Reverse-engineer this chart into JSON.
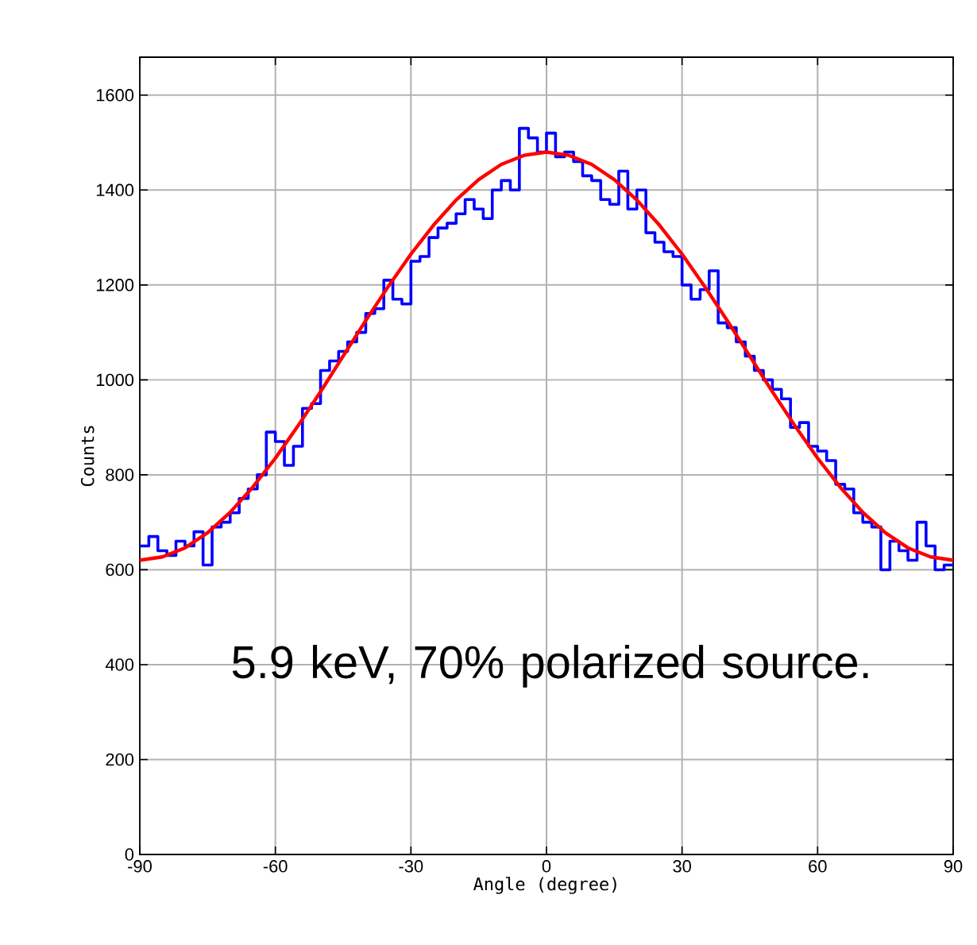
{
  "chart_data": {
    "type": "histogram",
    "xlabel": "Angle (degree)",
    "ylabel": "Counts",
    "annotations": [
      "5.9 keV, 70% polarized source."
    ],
    "bins": [
      -90,
      -88,
      -86,
      -84,
      -82,
      -80,
      -78,
      -76,
      -74,
      -72,
      -70,
      -68,
      -66,
      -64,
      -62,
      -60,
      -58,
      -56,
      -54,
      -52,
      -50,
      -48,
      -46,
      -44,
      -42,
      -40,
      -38,
      -36,
      -34,
      -32,
      -30,
      -28,
      -26,
      -24,
      -22,
      -20,
      -18,
      -16,
      -14,
      -12,
      -10,
      -8,
      -6,
      -4,
      -2,
      0,
      2,
      4,
      6,
      8,
      10,
      12,
      14,
      16,
      18,
      20,
      22,
      24,
      26,
      28,
      30,
      32,
      34,
      36,
      38,
      40,
      42,
      44,
      46,
      48,
      50,
      52,
      54,
      56,
      58,
      60,
      62,
      64,
      66,
      68,
      70,
      72,
      74,
      76,
      78,
      80,
      82,
      84,
      86,
      88,
      90
    ],
    "series": [
      {
        "color": "#0000ff",
        "values": [
          650,
          670,
          640,
          630,
          660,
          650,
          680,
          610,
          690,
          700,
          720,
          750,
          770,
          800,
          890,
          870,
          820,
          860,
          940,
          950,
          1020,
          1040,
          1060,
          1080,
          1100,
          1140,
          1150,
          1210,
          1170,
          1160,
          1250,
          1260,
          1300,
          1320,
          1330,
          1350,
          1380,
          1360,
          1340,
          1400,
          1420,
          1400,
          1530,
          1510,
          1480,
          1520,
          1470,
          1480,
          1460,
          1430,
          1420,
          1380,
          1370,
          1440,
          1360,
          1400,
          1310,
          1290,
          1270,
          1260,
          1200,
          1170,
          1190,
          1230,
          1120,
          1110,
          1080,
          1050,
          1020,
          1000,
          980,
          960,
          900,
          910,
          860,
          850,
          830,
          780,
          770,
          720,
          700,
          690,
          600,
          660,
          640,
          620,
          700,
          650,
          600,
          610
        ]
      },
      {
        "type": "line",
        "color": "#ff0000",
        "x": [
          -90,
          -85,
          -80,
          -75,
          -70,
          -65,
          -60,
          -55,
          -50,
          -45,
          -40,
          -35,
          -30,
          -25,
          -20,
          -15,
          -10,
          -5,
          0,
          5,
          10,
          15,
          20,
          25,
          30,
          35,
          40,
          45,
          50,
          55,
          60,
          65,
          70,
          75,
          80,
          85,
          90
        ],
        "values": [
          620,
          627,
          646,
          678,
          721,
          774,
          835,
          903,
          975,
          1050,
          1125,
          1197,
          1265,
          1326,
          1379,
          1422,
          1454,
          1473,
          1480,
          1473,
          1454,
          1422,
          1379,
          1326,
          1265,
          1197,
          1125,
          1050,
          975,
          903,
          835,
          774,
          721,
          678,
          646,
          627,
          620
        ]
      }
    ],
    "xlim": [
      -90,
      90
    ],
    "ylim": [
      0,
      1680
    ],
    "xticks": [
      -90,
      -60,
      -30,
      0,
      30,
      60,
      90
    ],
    "yticks": [
      0,
      200,
      400,
      600,
      800,
      1000,
      1200,
      1400,
      1600
    ],
    "grid": true
  }
}
